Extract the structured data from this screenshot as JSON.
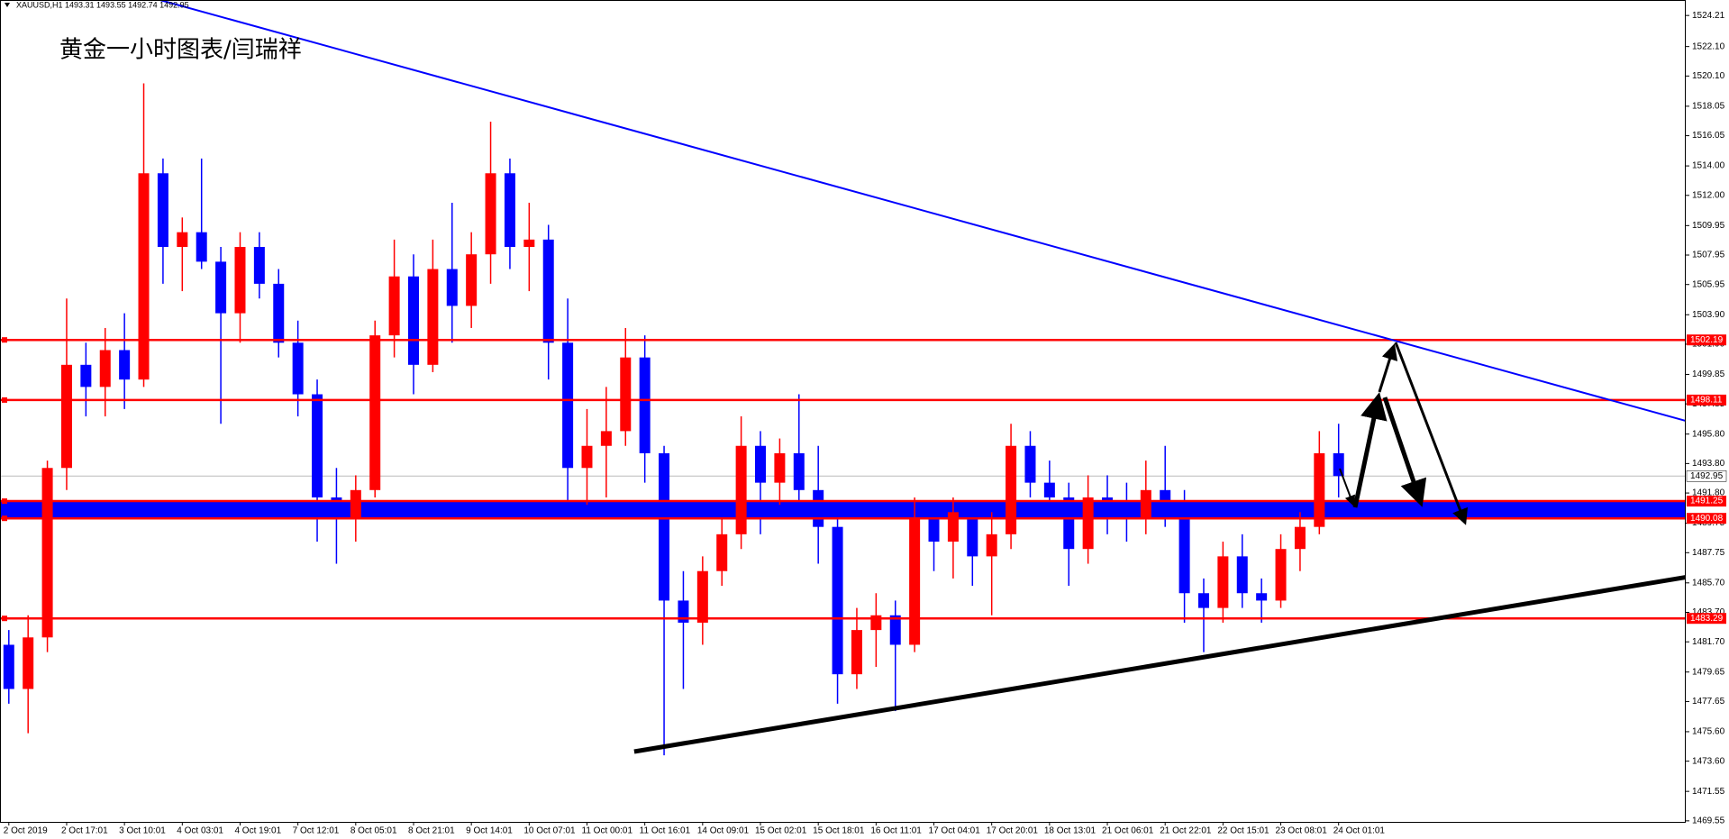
{
  "chart_data": {
    "type": "candlestick",
    "header": "XAUUSD,H1  1493.31 1493.55 1492.74 1492.95",
    "title": "黄金一小时图表/闫瑞祥",
    "up_color": "#ff0000",
    "down_color": "#0000ff",
    "categories": [
      "2 Oct 2019",
      null,
      null,
      "2 Oct 17:01",
      null,
      null,
      "3 Oct 10:01",
      null,
      null,
      "4 Oct 03:01",
      null,
      null,
      "4 Oct 19:01",
      null,
      null,
      "7 Oct 12:01",
      null,
      null,
      "8 Oct 05:01",
      null,
      null,
      "8 Oct 21:01",
      null,
      null,
      "9 Oct 14:01",
      null,
      null,
      "10 Oct 07:01",
      null,
      null,
      "11 Oct 00:01",
      null,
      null,
      "11 Oct 16:01",
      null,
      null,
      "14 Oct 09:01",
      null,
      null,
      "15 Oct 02:01",
      null,
      null,
      "15 Oct 18:01",
      null,
      null,
      "16 Oct 11:01",
      null,
      null,
      "17 Oct 04:01",
      null,
      null,
      "17 Oct 20:01",
      null,
      null,
      "18 Oct 13:01",
      null,
      null,
      "21 Oct 06:01",
      null,
      null,
      "21 Oct 22:01",
      null,
      null,
      "22 Oct 15:01",
      null,
      null,
      "23 Oct 08:01",
      null,
      null,
      "24 Oct 01:01"
    ],
    "open": [
      1481.5,
      1478.5,
      1482.0,
      1493.5,
      1500.5,
      1499.0,
      1501.5,
      1499.5,
      1513.5,
      1508.5,
      1509.5,
      1507.5,
      1504.0,
      1508.5,
      1506.0,
      1502.0,
      1498.5,
      1491.5,
      1490.0,
      1492.0,
      1502.5,
      1506.5,
      1500.5,
      1507.0,
      1504.5,
      1508.0,
      1513.5,
      1508.5,
      1509.0,
      1502.0,
      1493.5,
      1495.0,
      1496.0,
      1501.0,
      1494.5,
      1484.5,
      1483.0,
      1486.5,
      1489.0,
      1495.0,
      1492.5,
      1494.5,
      1492.0,
      1489.5,
      1479.5,
      1482.5,
      1483.5,
      1481.5,
      1490.0,
      1488.5,
      1490.5,
      1487.5,
      1489.0,
      1495.0,
      1492.5,
      1491.5,
      1488.0,
      1491.5,
      1490.5,
      1490.0,
      1492.0,
      1491.0,
      1485.0,
      1484.0,
      1487.5,
      1485.0,
      1484.5,
      1488.0,
      1489.5,
      1494.5
    ],
    "high": [
      1482.5,
      1483.5,
      1494.0,
      1505.0,
      1502.0,
      1503.0,
      1504.0,
      1519.6,
      1514.5,
      1510.5,
      1514.5,
      1508.5,
      1509.5,
      1509.5,
      1507.0,
      1503.5,
      1499.5,
      1493.5,
      1493.0,
      1503.5,
      1509.0,
      1508.0,
      1509.0,
      1511.5,
      1509.5,
      1517.0,
      1514.5,
      1511.5,
      1510.0,
      1505.0,
      1497.5,
      1499.0,
      1503.0,
      1502.5,
      1495.0,
      1486.5,
      1487.5,
      1490.0,
      1497.0,
      1496.0,
      1495.5,
      1498.5,
      1495.0,
      1490.0,
      1484.0,
      1485.0,
      1484.5,
      1491.5,
      1491.0,
      1491.5,
      1491.0,
      1490.5,
      1496.5,
      1496.0,
      1494.0,
      1492.5,
      1493.0,
      1493.0,
      1492.5,
      1494.0,
      1495.0,
      1492.0,
      1486.0,
      1488.5,
      1489.0,
      1486.0,
      1489.0,
      1490.5,
      1496.0,
      1496.5
    ],
    "low": [
      1477.5,
      1475.5,
      1481.0,
      1492.0,
      1497.0,
      1497.0,
      1497.5,
      1499.0,
      1506.0,
      1505.5,
      1507.0,
      1496.5,
      1502.0,
      1505.0,
      1501.0,
      1497.0,
      1488.5,
      1487.0,
      1488.5,
      1491.5,
      1501.0,
      1498.5,
      1500.0,
      1502.0,
      1503.0,
      1506.0,
      1507.0,
      1505.5,
      1499.5,
      1491.0,
      1491.0,
      1491.5,
      1495.0,
      1492.5,
      1474.0,
      1478.5,
      1481.5,
      1485.5,
      1488.0,
      1489.0,
      1491.0,
      1490.5,
      1487.0,
      1477.5,
      1478.5,
      1480.0,
      1477.0,
      1481.0,
      1486.5,
      1486.0,
      1485.5,
      1483.5,
      1488.0,
      1491.5,
      1490.5,
      1485.5,
      1487.0,
      1489.0,
      1488.5,
      1489.0,
      1489.5,
      1483.0,
      1481.0,
      1483.0,
      1484.0,
      1483.0,
      1484.0,
      1486.5,
      1489.0,
      1491.5
    ],
    "close": [
      1478.5,
      1482.0,
      1493.5,
      1500.5,
      1499.0,
      1501.5,
      1499.5,
      1513.5,
      1508.5,
      1509.5,
      1507.5,
      1504.0,
      1508.5,
      1506.0,
      1502.0,
      1498.5,
      1491.5,
      1490.0,
      1492.0,
      1502.5,
      1506.5,
      1500.5,
      1507.0,
      1504.5,
      1508.0,
      1513.5,
      1508.5,
      1509.0,
      1502.0,
      1493.5,
      1495.0,
      1496.0,
      1501.0,
      1494.5,
      1484.5,
      1483.0,
      1486.5,
      1489.0,
      1495.0,
      1492.5,
      1494.5,
      1492.0,
      1489.5,
      1479.5,
      1482.5,
      1483.5,
      1481.5,
      1490.0,
      1488.5,
      1490.5,
      1487.5,
      1489.0,
      1495.0,
      1492.5,
      1491.5,
      1488.0,
      1491.5,
      1490.5,
      1490.0,
      1492.0,
      1491.0,
      1485.0,
      1484.0,
      1487.5,
      1485.0,
      1484.5,
      1488.0,
      1489.5,
      1494.5,
      1492.95
    ],
    "ylim": [
      1469.48,
      1525.26
    ],
    "yticks": [
      1524.21,
      {
        "value": 1522.1,
        "label": "1522.10"
      },
      {
        "value": 1520.1,
        "label": "1520.10"
      },
      1518.05,
      1516.05,
      {
        "value": 1514,
        "label": "1514.00"
      },
      {
        "value": 1512,
        "label": "1512.00"
      },
      1509.95,
      1507.95,
      1505.95,
      {
        "value": 1503.9,
        "label": "1503.90"
      },
      {
        "value": 1501.9,
        "label": "1501.90"
      },
      1499.85,
      1497.85,
      {
        "value": 1495.8,
        "label": "1495.80"
      },
      {
        "value": 1493.8,
        "label": "1493.80"
      },
      {
        "value": 1491.8,
        "label": "1491.80"
      },
      1489.75,
      1487.75,
      {
        "value": 1485.7,
        "label": "1485.70"
      },
      {
        "value": 1483.7,
        "label": "1483.70"
      },
      {
        "value": 1481.7,
        "label": "1481.70"
      },
      1479.65,
      1477.65,
      {
        "value": 1475.6,
        "label": "1475.60"
      },
      {
        "value": 1473.6,
        "label": "1473.60"
      },
      1471.55,
      1469.55
    ],
    "hlines": [
      {
        "value": 1502.19,
        "color": "#ff0000"
      },
      {
        "value": 1498.11,
        "color": "#ff0000"
      },
      {
        "value": 1491.25,
        "color": "#ff0000",
        "band_color": "#0000ff"
      },
      {
        "value": 1490.08,
        "color": "#ff0000"
      },
      {
        "value": 1483.29,
        "color": "#ff0000"
      }
    ],
    "current_price": 1492.95,
    "trendlines": [
      {
        "x": [
          7.84,
          87
        ],
        "y": [
          1525.26,
          1496.7
        ],
        "color": "#0000ff",
        "width": 2
      },
      {
        "x": [
          32.45,
          87
        ],
        "y": [
          1474.25,
          1486.08
        ],
        "color": "#000000",
        "width": 5
      }
    ]
  }
}
